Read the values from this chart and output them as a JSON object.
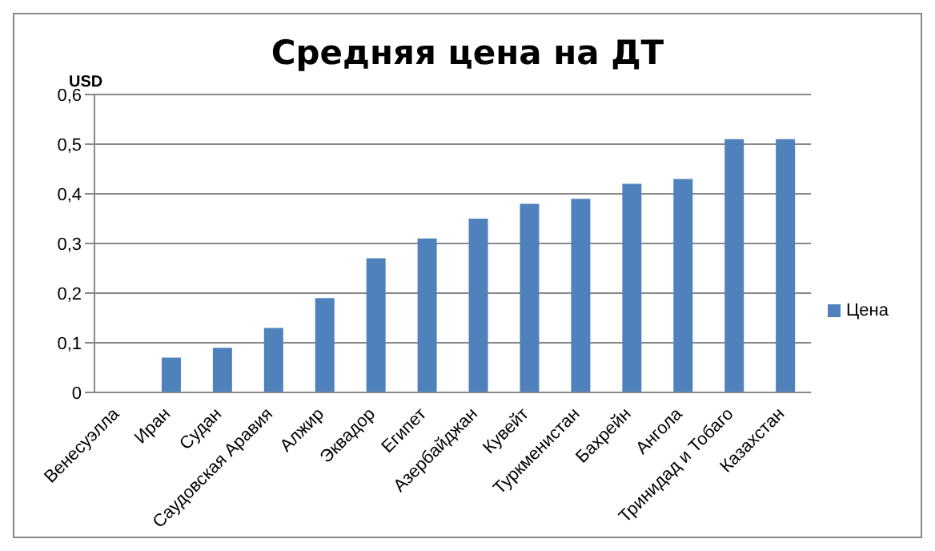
{
  "chart_data": {
    "type": "bar",
    "title": "Средняя цена на ДТ",
    "ylabel": "USD",
    "categories": [
      "Венесуэлла",
      "Иран",
      "Судан",
      "Саудовская Аравия",
      "Алжир",
      "Эквадор",
      "Египет",
      "Азербайджан",
      "Кувейт",
      "Туркменистан",
      "Бахрейн",
      "Ангола",
      "Тринидад и Тобаго",
      "Казахстан"
    ],
    "series": [
      {
        "name": "Цена",
        "color": "#4f81bd",
        "values": [
          0,
          0.07,
          0.09,
          0.13,
          0.19,
          0.27,
          0.31,
          0.35,
          0.38,
          0.39,
          0.42,
          0.43,
          0.51,
          0.51
        ]
      }
    ],
    "ylim": [
      0,
      0.6
    ],
    "yticks": [
      {
        "value": 0,
        "label": "0"
      },
      {
        "value": 0.1,
        "label": "0,1"
      },
      {
        "value": 0.2,
        "label": "0,2"
      },
      {
        "value": 0.3,
        "label": "0,3"
      },
      {
        "value": 0.4,
        "label": "0,4"
      },
      {
        "value": 0.5,
        "label": "0,5"
      },
      {
        "value": 0.6,
        "label": "0,6"
      }
    ],
    "grid": "y",
    "legend": "right"
  }
}
